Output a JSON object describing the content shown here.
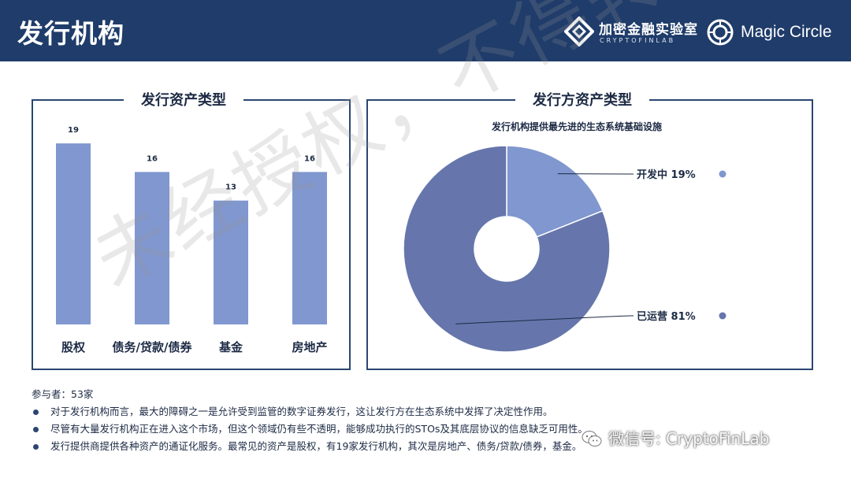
{
  "header": {
    "title": "发行机构",
    "brand_cn": "加密金融实验室",
    "brand_en": "CRYPTOFINLAB",
    "brand2": "Magic Circle",
    "background_color": "#1f3c6a"
  },
  "watermark": "未经授权，不得转载",
  "wechat_watermark": "微信号: CryptoFinLab",
  "chart_data": [
    {
      "type": "bar",
      "title": "发行资产类型",
      "categories": [
        "股权",
        "债务/贷款/债券",
        "基金",
        "房地产"
      ],
      "values": [
        19,
        16,
        13,
        16
      ],
      "ylim": [
        0,
        20
      ],
      "grid": false,
      "legend": "none",
      "color": "#8097cf"
    },
    {
      "type": "pie",
      "title": "发行方资产类型",
      "subtitle": "发行机构提供最先进的生态系统基础设施",
      "donut": true,
      "slices": [
        {
          "label": "开发中",
          "value": 19,
          "color": "#8097cf"
        },
        {
          "label": "已运营",
          "value": 81,
          "color": "#6676ac"
        }
      ],
      "legend": "right"
    }
  ],
  "notes": {
    "participants": "参与者：53家",
    "bullets": [
      "对于发行机构而言，最大的障碍之一是允许受到监管的数字证券发行，这让发行方在生态系统中发挥了决定性作用。",
      "尽管有大量发行机构正在进入这个市场，但这个领域仍有些不透明，能够成功执行的STOs及其底层协议的信息缺乏可用性。",
      "发行提供商提供各种资产的通证化服务。最常见的资产是股权，有19家发行机构，其次是房地产、债务/贷款/债券，基金。"
    ]
  }
}
